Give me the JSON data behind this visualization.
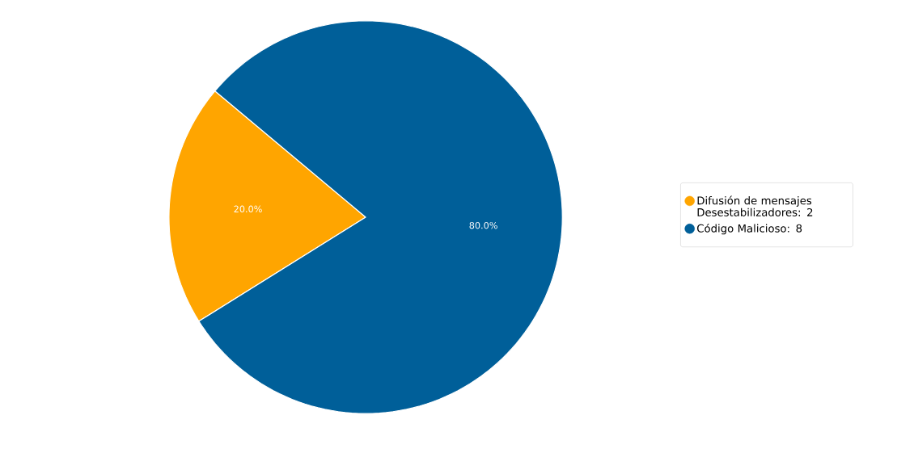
{
  "chart_data": {
    "type": "pie",
    "categories": [
      "Difusión de mensajes Desestabilizadores: 2",
      "Código Malicioso: 8"
    ],
    "values": [
      20,
      80
    ],
    "colors": [
      "#ffa500",
      "#005f99"
    ],
    "value_labels": [
      "20.0%",
      "80.0%"
    ],
    "legend": "right"
  }
}
